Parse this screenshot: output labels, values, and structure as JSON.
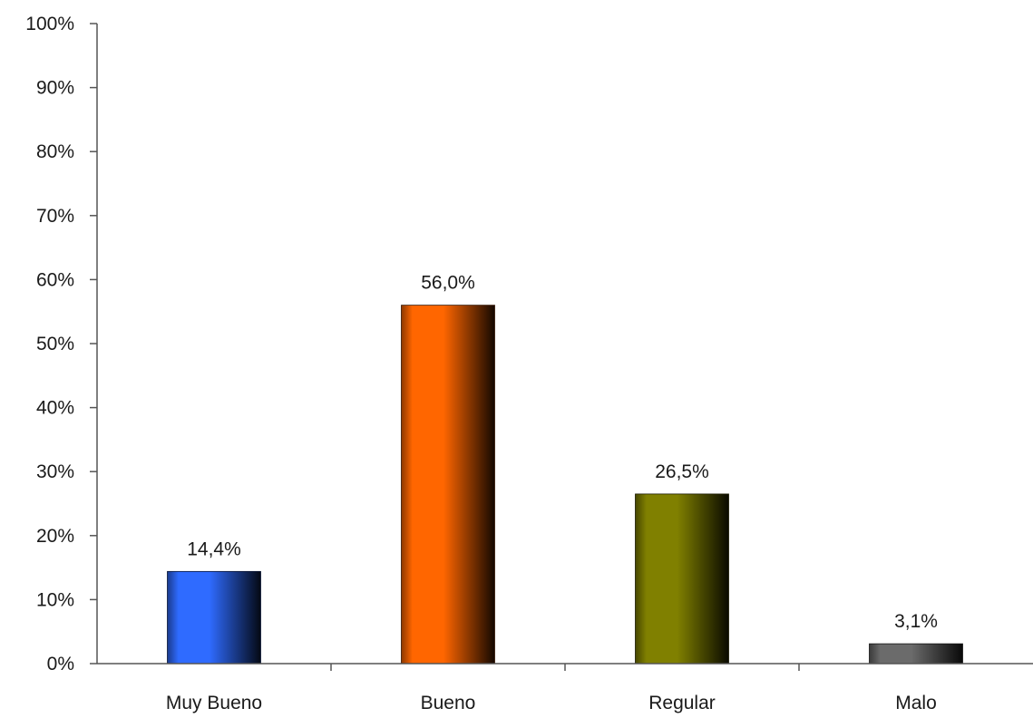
{
  "chart_data": {
    "type": "bar",
    "title": "",
    "xlabel": "",
    "ylabel": "",
    "ylim": [
      0,
      100
    ],
    "y_ticks": [
      0,
      10,
      20,
      30,
      40,
      50,
      60,
      70,
      80,
      90,
      100
    ],
    "y_tick_labels": [
      "0%",
      "10%",
      "20%",
      "30%",
      "40%",
      "50%",
      "60%",
      "70%",
      "80%",
      "90%",
      "100%"
    ],
    "categories": [
      "Muy Bueno",
      "Bueno",
      "Regular",
      "Malo"
    ],
    "values": [
      14.4,
      56.0,
      26.5,
      3.1
    ],
    "data_labels": [
      "14,4%",
      "56,0%",
      "26,5%",
      "3,1%"
    ],
    "bar_colors": [
      "#2f6bff",
      "#ff6600",
      "#808000",
      "#6b6b6b"
    ],
    "grid": false,
    "legend": "none"
  }
}
